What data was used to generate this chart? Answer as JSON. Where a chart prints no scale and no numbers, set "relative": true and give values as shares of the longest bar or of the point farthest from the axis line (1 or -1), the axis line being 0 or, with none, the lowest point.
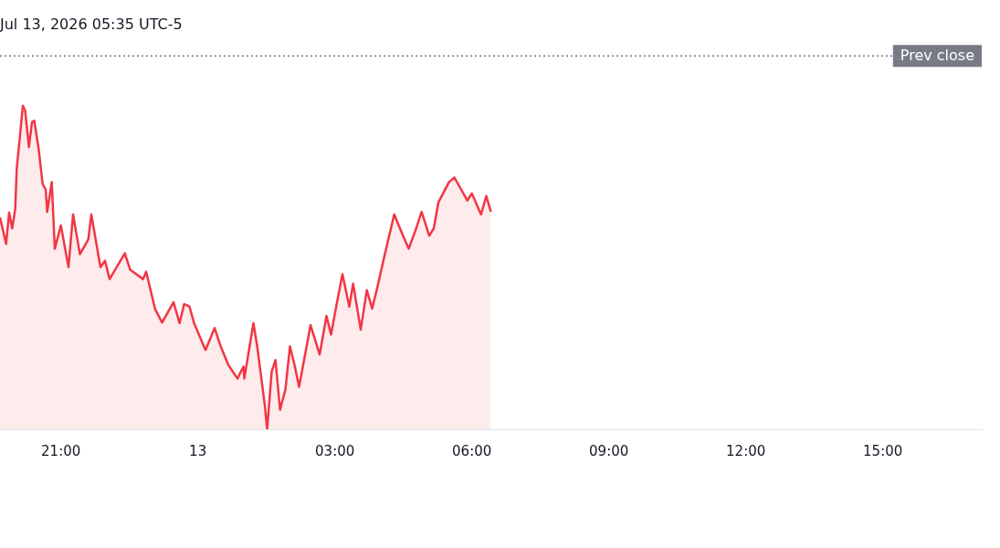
{
  "chart_data": {
    "type": "area",
    "title": "Jul 13, 2026 05:35 UTC-5",
    "relative": true,
    "grid": false,
    "legend": false,
    "marker": "none",
    "line_style": "solid",
    "xlim": [
      "2026-07-12T19:40",
      "2026-07-13T17:10"
    ],
    "xticks": [
      {
        "value": "2026-07-12T21:00",
        "label": "21:00"
      },
      {
        "value": "2026-07-13T00:00",
        "label": "13"
      },
      {
        "value": "2026-07-13T03:00",
        "label": "03:00"
      },
      {
        "value": "2026-07-13T06:00",
        "label": "06:00"
      },
      {
        "value": "2026-07-13T09:00",
        "label": "09:00"
      },
      {
        "value": "2026-07-13T12:00",
        "label": "12:00"
      },
      {
        "value": "2026-07-13T15:00",
        "label": "15:00"
      }
    ],
    "ref_lines": [
      {
        "axis": "y",
        "value": 1.154,
        "label": "Prev close",
        "color": "#787b86",
        "line_style": "dotted"
      }
    ],
    "series": [
      {
        "color": "#f23645",
        "x": [
          "2026-07-12T19:40",
          "2026-07-12T19:48",
          "2026-07-12T19:52",
          "2026-07-12T19:56",
          "2026-07-12T20:00",
          "2026-07-12T20:02",
          "2026-07-12T20:06",
          "2026-07-12T20:10",
          "2026-07-12T20:13",
          "2026-07-12T20:18",
          "2026-07-12T20:22",
          "2026-07-12T20:25",
          "2026-07-12T20:31",
          "2026-07-12T20:36",
          "2026-07-12T20:40",
          "2026-07-12T20:42",
          "2026-07-12T20:48",
          "2026-07-12T20:52",
          "2026-07-12T21:00",
          "2026-07-12T21:10",
          "2026-07-12T21:16",
          "2026-07-12T21:25",
          "2026-07-12T21:36",
          "2026-07-12T21:40",
          "2026-07-12T21:52",
          "2026-07-12T21:58",
          "2026-07-12T22:04",
          "2026-07-12T22:24",
          "2026-07-12T22:31",
          "2026-07-12T22:48",
          "2026-07-12T22:52",
          "2026-07-12T23:04",
          "2026-07-12T23:13",
          "2026-07-12T23:28",
          "2026-07-12T23:36",
          "2026-07-12T23:42",
          "2026-07-12T23:49",
          "2026-07-12T23:55",
          "2026-07-13T00:10",
          "2026-07-13T00:22",
          "2026-07-13T00:30",
          "2026-07-13T00:40",
          "2026-07-13T00:52",
          "2026-07-13T01:00",
          "2026-07-13T01:01",
          "2026-07-13T01:13",
          "2026-07-13T01:18",
          "2026-07-13T01:28",
          "2026-07-13T01:31",
          "2026-07-13T01:37",
          "2026-07-13T01:42",
          "2026-07-13T01:48",
          "2026-07-13T01:55",
          "2026-07-13T02:01",
          "2026-07-13T02:07",
          "2026-07-13T02:13",
          "2026-07-13T02:22",
          "2026-07-13T02:28",
          "2026-07-13T02:40",
          "2026-07-13T02:49",
          "2026-07-13T02:55",
          "2026-07-13T03:04",
          "2026-07-13T03:10",
          "2026-07-13T03:19",
          "2026-07-13T03:24",
          "2026-07-13T03:34",
          "2026-07-13T03:42",
          "2026-07-13T03:49",
          "2026-07-13T03:55",
          "2026-07-13T04:06",
          "2026-07-13T04:18",
          "2026-07-13T04:28",
          "2026-07-13T04:37",
          "2026-07-13T04:46",
          "2026-07-13T04:54",
          "2026-07-13T05:04",
          "2026-07-13T05:10",
          "2026-07-13T05:16",
          "2026-07-13T05:30",
          "2026-07-13T05:37",
          "2026-07-13T05:46",
          "2026-07-13T05:54",
          "2026-07-13T06:00",
          "2026-07-13T06:12",
          "2026-07-13T06:19",
          "2026-07-13T06:25"
        ],
        "values": [
          0.655,
          0.573,
          0.67,
          0.621,
          0.681,
          0.806,
          0.9,
          1,
          0.986,
          0.872,
          0.949,
          0.954,
          0.863,
          0.758,
          0.741,
          0.672,
          0.764,
          0.558,
          0.63,
          0.501,
          0.664,
          0.541,
          0.587,
          0.664,
          0.501,
          0.521,
          0.464,
          0.544,
          0.493,
          0.464,
          0.487,
          0.37,
          0.33,
          0.393,
          0.328,
          0.387,
          0.379,
          0.328,
          0.245,
          0.313,
          0.256,
          0.199,
          0.157,
          0.194,
          0.157,
          0.328,
          0.256,
          0.074,
          0,
          0.179,
          0.214,
          0.06,
          0.123,
          0.256,
          0.199,
          0.131,
          0.245,
          0.322,
          0.231,
          0.35,
          0.293,
          0.407,
          0.479,
          0.379,
          0.45,
          0.308,
          0.43,
          0.373,
          0.43,
          0.544,
          0.664,
          0.607,
          0.558,
          0.615,
          0.672,
          0.598,
          0.621,
          0.701,
          0.764,
          0.778,
          0.741,
          0.707,
          0.729,
          0.664,
          0.721,
          0.672
        ]
      }
    ]
  }
}
